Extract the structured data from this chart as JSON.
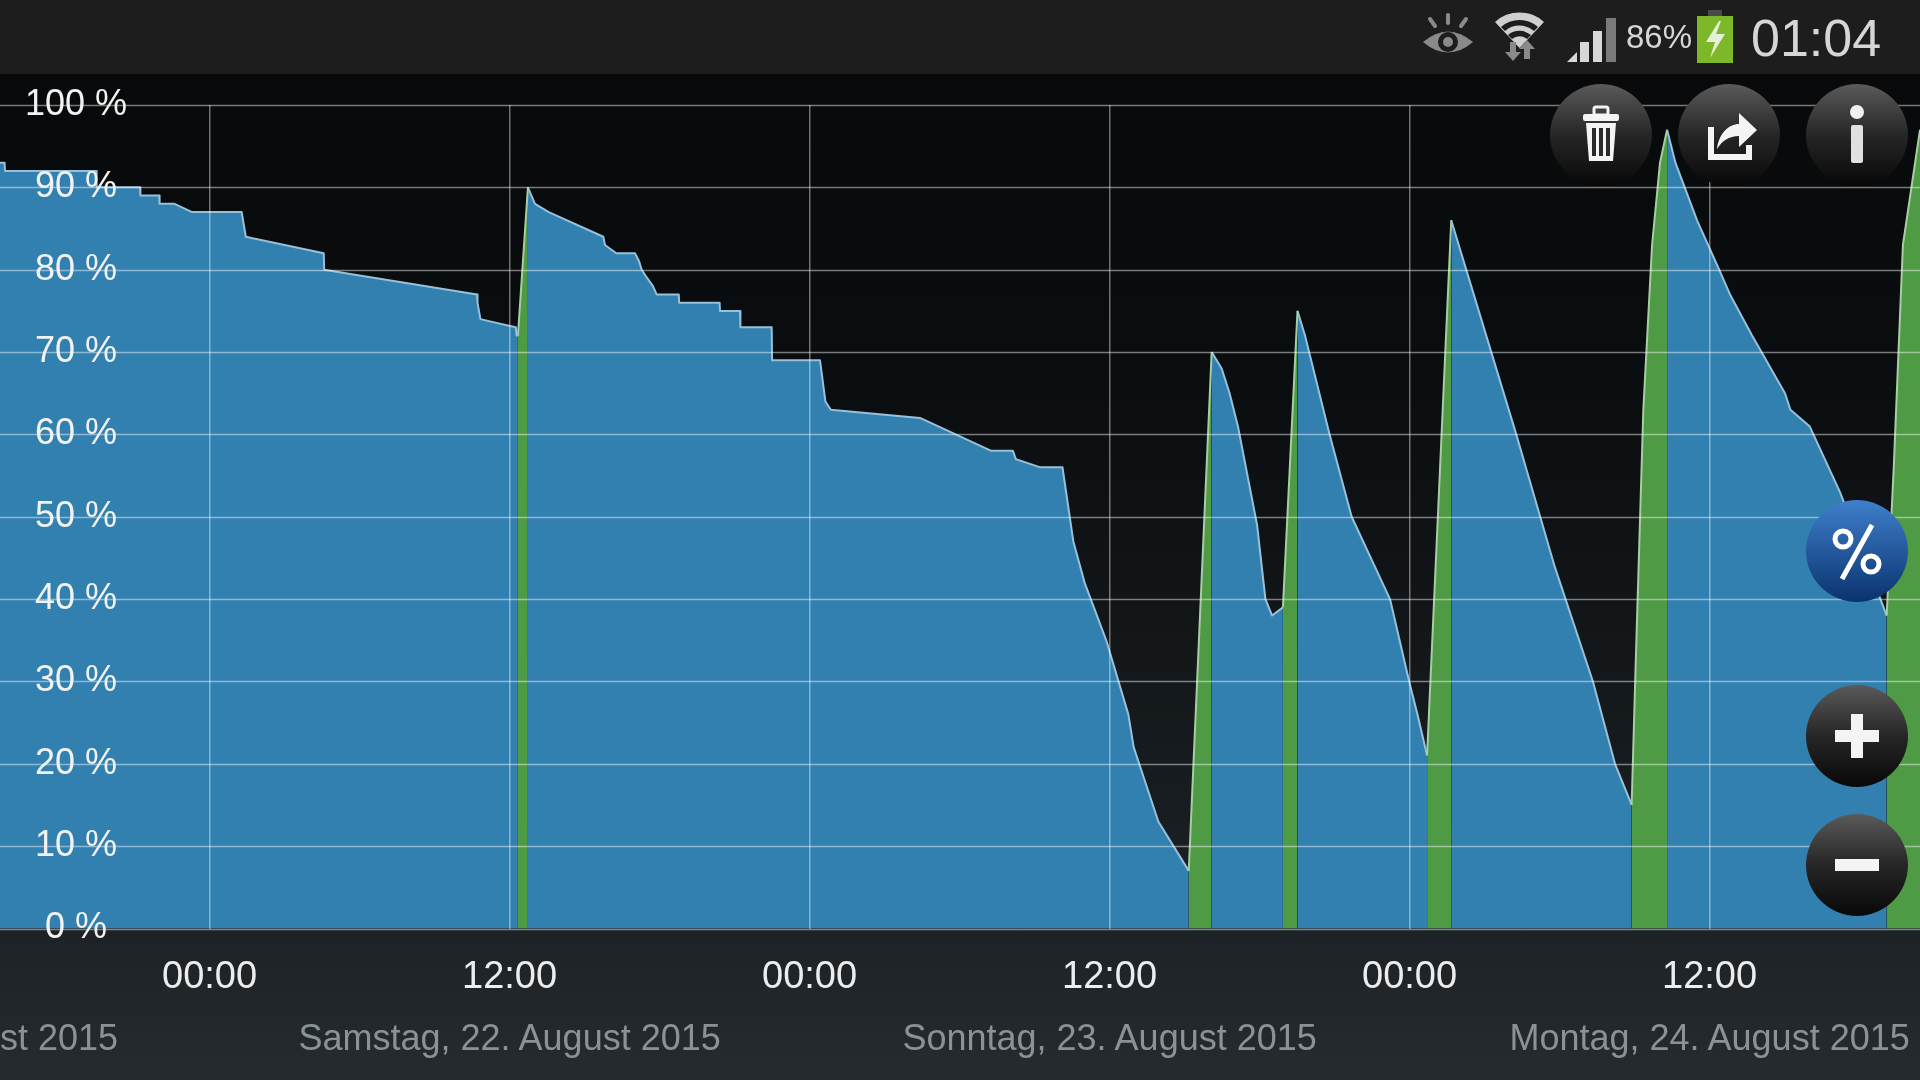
{
  "chart_data": {
    "type": "area",
    "xlim": [
      "2015-08-21T15:37",
      "2015-08-24T20:25"
    ],
    "xticks": [
      {
        "value": "2015-08-22T00:00",
        "label": "00:00"
      },
      {
        "value": "2015-08-22T12:00",
        "label": "12:00"
      },
      {
        "value": "2015-08-23T00:00",
        "label": "00:00"
      },
      {
        "value": "2015-08-23T12:00",
        "label": "12:00"
      },
      {
        "value": "2015-08-24T00:00",
        "label": "00:00"
      },
      {
        "value": "2015-08-24T12:00",
        "label": "12:00"
      }
    ],
    "x2lim": [
      "2015-08-21T15:37",
      "2015-08-24T20:25"
    ],
    "x2ticks": [
      {
        "value": "2015-08-22T12:00",
        "label": "Samstag, 22. August 2015"
      },
      {
        "value": "2015-08-23T12:00",
        "label": "Sonntag, 23. August 2015"
      },
      {
        "value": "2015-08-24T12:00",
        "label": "Montag, 24. August 2015"
      }
    ],
    "ylim": [
      0,
      100
    ],
    "yticks": [
      {
        "value": 0,
        "label": "0 %"
      },
      {
        "value": 10,
        "label": "10 %"
      },
      {
        "value": 20,
        "label": "20 %"
      },
      {
        "value": 30,
        "label": "30 %"
      },
      {
        "value": 40,
        "label": "40 %"
      },
      {
        "value": 50,
        "label": "50 %"
      },
      {
        "value": 60,
        "label": "60 %"
      },
      {
        "value": 70,
        "label": "70 %"
      },
      {
        "value": 80,
        "label": "80 %"
      },
      {
        "value": 90,
        "label": "90 %"
      },
      {
        "value": 100,
        "label": "100 %"
      }
    ],
    "grid": true,
    "series": [
      {
        "color": "#3180b0",
        "x": [
          "2015-08-21T15:37",
          "2015-08-21T15:48",
          "2015-08-21T15:49",
          "2015-08-21T19:28",
          "2015-08-21T19:29",
          "2015-08-21T21:13",
          "2015-08-21T21:14",
          "2015-08-21T21:59",
          "2015-08-21T22:00",
          "2015-08-21T22:36",
          "2015-08-21T23:18",
          "2015-08-22T01:17",
          "2015-08-22T01:27",
          "2015-08-22T04:34",
          "2015-08-22T04:35",
          "2015-08-22T10:42",
          "2015-08-22T10:43",
          "2015-08-22T10:50",
          "2015-08-22T12:15",
          "2015-08-22T12:17",
          "2015-08-22T12:20",
          "2015-08-22T12:32",
          "2015-08-22T12:44",
          "2015-08-22T13:01",
          "2015-08-22T13:34",
          "2015-08-22T15:45",
          "2015-08-22T15:49",
          "2015-08-22T16:16",
          "2015-08-22T17:01",
          "2015-08-22T17:11",
          "2015-08-22T17:17",
          "2015-08-22T17:30",
          "2015-08-22T17:44",
          "2015-08-22T17:53",
          "2015-08-22T18:46",
          "2015-08-22T18:47",
          "2015-08-22T20:24",
          "2015-08-22T20:25",
          "2015-08-22T21:13",
          "2015-08-22T21:14",
          "2015-08-22T22:29",
          "2015-08-22T22:30",
          "2015-08-23T00:25",
          "2015-08-23T00:38",
          "2015-08-23T00:51",
          "2015-08-23T04:25",
          "2015-08-23T07:16",
          "2015-08-23T08:08",
          "2015-08-23T08:15",
          "2015-08-23T09:14",
          "2015-08-23T10:07",
          "2015-08-23T10:33",
          "2015-08-23T11:00",
          "2015-08-23T11:52",
          "2015-08-23T12:45",
          "2015-08-23T12:58",
          "2015-08-23T13:57",
          "2015-08-23T15:10",
          "2015-08-23T15:37",
          "2015-08-23T16:05",
          "2015-08-23T16:29",
          "2015-08-23T16:48",
          "2015-08-23T17:08",
          "2015-08-23T17:54",
          "2015-08-23T18:14",
          "2015-08-23T18:30",
          "2015-08-23T18:56",
          "2015-08-23T19:13",
          "2015-08-23T19:31",
          "2015-08-23T19:49",
          "2015-08-23T20:48",
          "2015-08-23T21:41",
          "2015-08-23T23:13",
          "2015-08-23T23:59",
          "2015-08-24T00:19",
          "2015-08-24T00:42",
          "2015-08-24T01:11",
          "2015-08-24T01:40",
          "2015-08-24T02:04",
          "2015-08-24T04:16",
          "2015-08-24T05:48",
          "2015-08-24T07:20",
          "2015-08-24T08:13",
          "2015-08-24T08:53",
          "2015-08-24T09:35",
          "2015-08-24T10:18",
          "2015-08-24T10:38",
          "2015-08-24T11:30",
          "2015-08-24T12:23",
          "2015-08-24T12:49",
          "2015-08-24T13:42",
          "2015-08-24T15:01",
          "2015-08-24T15:14",
          "2015-08-24T16:00",
          "2015-08-24T17:13",
          "2015-08-24T19:05"
        ],
        "values": [
          93,
          93,
          92,
          92,
          90,
          90,
          89,
          89,
          88,
          88,
          87,
          87,
          84,
          82,
          80,
          77,
          76,
          74,
          73,
          72,
          72,
          null,
          90,
          88,
          87,
          84,
          83,
          82,
          82,
          81,
          80,
          79,
          78,
          77,
          77,
          76,
          76,
          75,
          75,
          73,
          73,
          69,
          69,
          64,
          63,
          62,
          58,
          58,
          57,
          56,
          56,
          47,
          42,
          35,
          26,
          22,
          13,
          7,
          null,
          70,
          68,
          65,
          61,
          49,
          40,
          38,
          39,
          null,
          75,
          72,
          60,
          50,
          40,
          30,
          26,
          21,
          null,
          86,
          82,
          60,
          44,
          30,
          20,
          15,
          null,
          97,
          93,
          86,
          80,
          77,
          72,
          65,
          63,
          61,
          53,
          38
        ]
      },
      {
        "color": "#4f9a45",
        "x": [
          "2015-08-22T12:20",
          "2015-08-22T12:44",
          "2015-08-23T02:00",
          "2015-08-23T15:10",
          "2015-08-23T16:05",
          "2015-08-23T17:30",
          "2015-08-23T18:56",
          "2015-08-23T19:31",
          "2015-08-23T22:00",
          "2015-08-24T00:42",
          "2015-08-24T01:40",
          "2015-08-24T05:00",
          "2015-08-24T08:53",
          "2015-08-24T09:02",
          "2015-08-24T09:21",
          "2015-08-24T09:42",
          "2015-08-24T10:01",
          "2015-08-24T10:18",
          "2015-08-24T15:00",
          "2015-08-24T19:05",
          "2015-08-24T19:22",
          "2015-08-24T19:44",
          "2015-08-24T20:25"
        ],
        "values": [
          72,
          90,
          null,
          7,
          70,
          null,
          39,
          75,
          null,
          21,
          86,
          null,
          15,
          31,
          63,
          83,
          93,
          97,
          null,
          38,
          56,
          83,
          97
        ]
      }
    ],
    "annotations": [
      "st 2015",
      "86%",
      "01:04"
    ]
  }
}
